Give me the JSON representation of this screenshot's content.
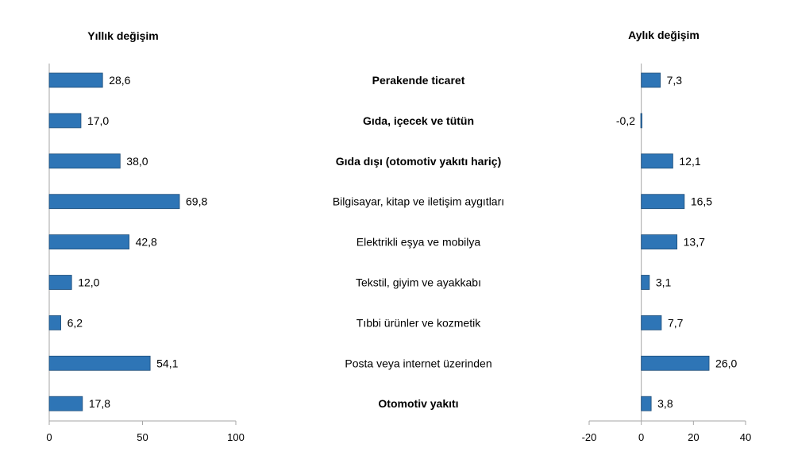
{
  "chart_data": [
    {
      "type": "bar",
      "orientation": "horizontal",
      "title": "Yıllık değişim",
      "categories": [
        "Perakende ticaret",
        "Gıda, içecek ve tütün",
        "Gıda dışı (otomotiv yakıtı hariç)",
        "Bilgisayar, kitap ve iletişim aygıtları",
        "Elektrikli eşya ve mobilya",
        "Tekstil, giyim ve ayakkabı",
        "Tıbbi ürünler ve kozmetik",
        "Posta veya internet üzerinden",
        "Otomotiv yakıtı"
      ],
      "values": [
        28.6,
        17.0,
        38.0,
        69.8,
        42.8,
        12.0,
        6.2,
        54.1,
        17.8
      ],
      "value_labels": [
        "28,6",
        "17,0",
        "38,0",
        "69,8",
        "42,8",
        "12,0",
        "6,2",
        "54,1",
        "17,8"
      ],
      "xlim": [
        0,
        100
      ],
      "xticks": [
        "0",
        "50",
        "100"
      ],
      "grid": false,
      "color": "#2e75b6"
    },
    {
      "type": "bar",
      "orientation": "horizontal",
      "title": "Aylık değişim",
      "categories": [
        "Perakende ticaret",
        "Gıda, içecek ve tütün",
        "Gıda dışı (otomotiv yakıtı hariç)",
        "Bilgisayar, kitap ve iletişim aygıtları",
        "Elektrikli eşya ve mobilya",
        "Tekstil, giyim ve ayakkabı",
        "Tıbbi ürünler ve kozmetik",
        "Posta veya internet üzerinden",
        "Otomotiv yakıtı"
      ],
      "values": [
        7.3,
        -0.2,
        12.1,
        16.5,
        13.7,
        3.1,
        7.7,
        26.0,
        3.8
      ],
      "value_labels": [
        "7,3",
        "-0,2",
        "12,1",
        "16,5",
        "13,7",
        "3,1",
        "7,7",
        "26,0",
        "3,8"
      ],
      "xlim": [
        -20,
        40
      ],
      "xticks": [
        "-20",
        "0",
        "20",
        "40"
      ],
      "grid": false,
      "color": "#2e75b6"
    }
  ],
  "bold_categories": [
    true,
    true,
    true,
    false,
    false,
    false,
    false,
    false,
    true
  ]
}
